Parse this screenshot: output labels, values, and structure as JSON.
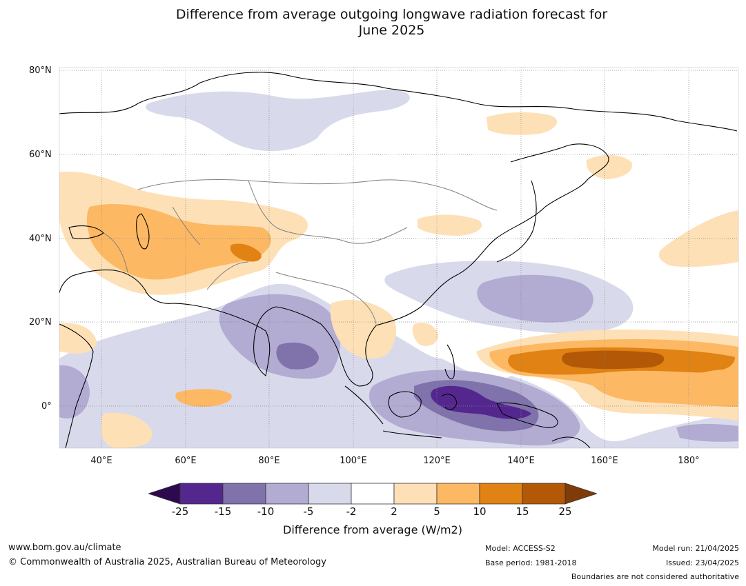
{
  "title": {
    "line1": "Difference from average outgoing longwave radiation forecast for",
    "line2": "June 2025"
  },
  "map": {
    "lat_labels": [
      "80°N",
      "60°N",
      "40°N",
      "20°N",
      "0°"
    ],
    "lon_labels": [
      "40°E",
      "60°E",
      "80°E",
      "100°E",
      "120°E",
      "140°E",
      "160°E",
      "180°"
    ],
    "lon_range": [
      30,
      192
    ],
    "lat_range": [
      -10,
      81
    ]
  },
  "colorbar": {
    "ticks": [
      "-25",
      "-15",
      "-10",
      "-5",
      "-2",
      "2",
      "5",
      "10",
      "15",
      "25"
    ],
    "colors": {
      "below": "#2d0a4e",
      "b1": "#54278f",
      "b2": "#8073ac",
      "b3": "#b2abd2",
      "b4": "#d8daeb",
      "b5": "#ffffff",
      "b6": "#fee0b6",
      "b7": "#fdb863",
      "b8": "#e08214",
      "b9": "#b35806",
      "above": "#7f3b08"
    },
    "label": "Difference from average (W/m2)"
  },
  "footer": {
    "website": "www.bom.gov.au/climate",
    "copyright": "© Commonwealth of Australia 2025, Australian Bureau of Meteorology",
    "model": "Model: ACCESS-S2",
    "base_period": "Base period: 1981-2018",
    "model_run": "Model run: 21/04/2025",
    "issued": "Issued: 23/04/2025",
    "disclaimer": "Boundaries are not considered authoritative"
  }
}
